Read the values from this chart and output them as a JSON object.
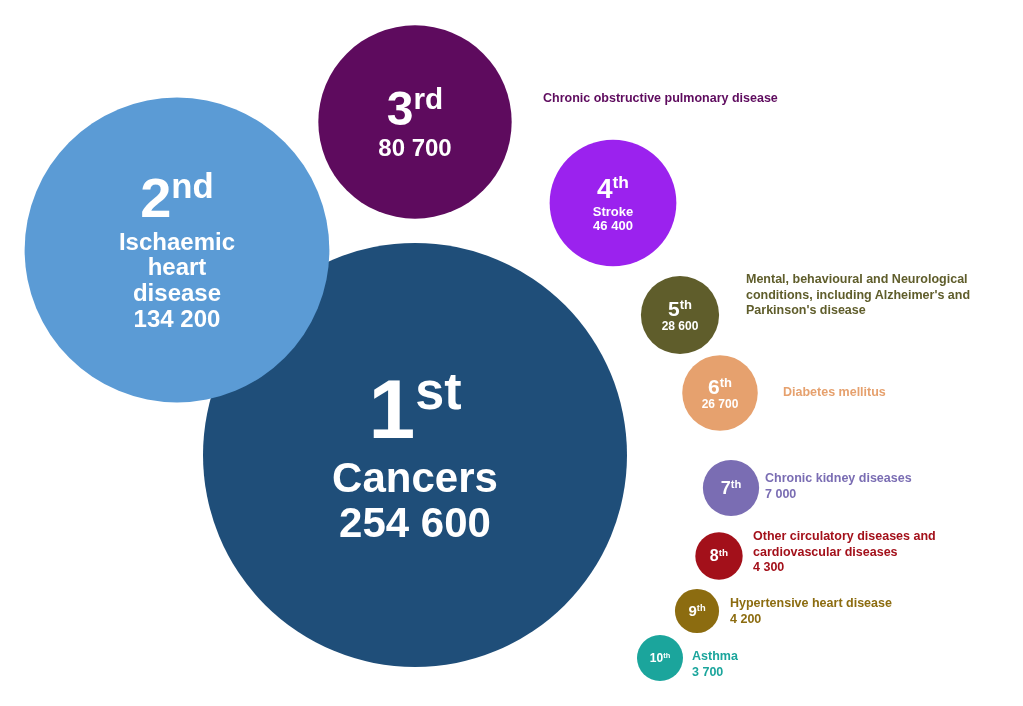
{
  "chart_data": {
    "type": "other",
    "categories": [
      "Cancers",
      "Ischaemic heart disease",
      "Chronic obstructive pulmonary disease",
      "Stroke",
      "Mental, behavioural and Neurological conditions, including Alzheimer's and Parkinson's disease",
      "Diabetes mellitus",
      "Chronic kidney diseases",
      "Other circulatory diseases and cardiovascular diseases",
      "Hypertensive heart disease",
      "Asthma"
    ],
    "values": [
      254600,
      134200,
      80700,
      46400,
      28600,
      26700,
      7000,
      4300,
      4200,
      3700
    ],
    "value_labels": [
      "254 600",
      "134 200",
      "80 700",
      "46 400",
      "28 600",
      "26 700",
      "7 000",
      "4 300",
      "4 200",
      "3 700"
    ],
    "colors": [
      "#1f4e79",
      "#5b9bd5",
      "#5e0b5e",
      "#9b22ee",
      "#5f5d2b",
      "#e6a16e",
      "#7a6db3",
      "#a3101a",
      "#8c6c10",
      "#1ba59c"
    ],
    "annotations": [
      {
        "text": "1$^{st}$",
        "x": "Cancers"
      },
      {
        "text": "2$^{nd}$",
        "x": "Ischaemic heart disease"
      },
      {
        "text": "3$^{rd}$",
        "x": "Chronic obstructive pulmonary disease"
      },
      {
        "text": "4$^{th}$",
        "x": "Stroke"
      },
      {
        "text": "5$^{th}$",
        "x": "Mental, behavioural and Neurological conditions, including Alzheimer's and Parkinson's disease"
      },
      {
        "text": "6$^{th}$",
        "x": "Diabetes mellitus"
      },
      {
        "text": "7$^{th}$",
        "x": "Chronic kidney diseases"
      },
      {
        "text": "8$^{th}$",
        "x": "Other circulatory diseases and cardiovascular diseases"
      },
      {
        "text": "9$^{th}$",
        "x": "Hypertensive heart disease"
      },
      {
        "text": "10$^{th}$",
        "x": "Asthma"
      }
    ]
  }
}
